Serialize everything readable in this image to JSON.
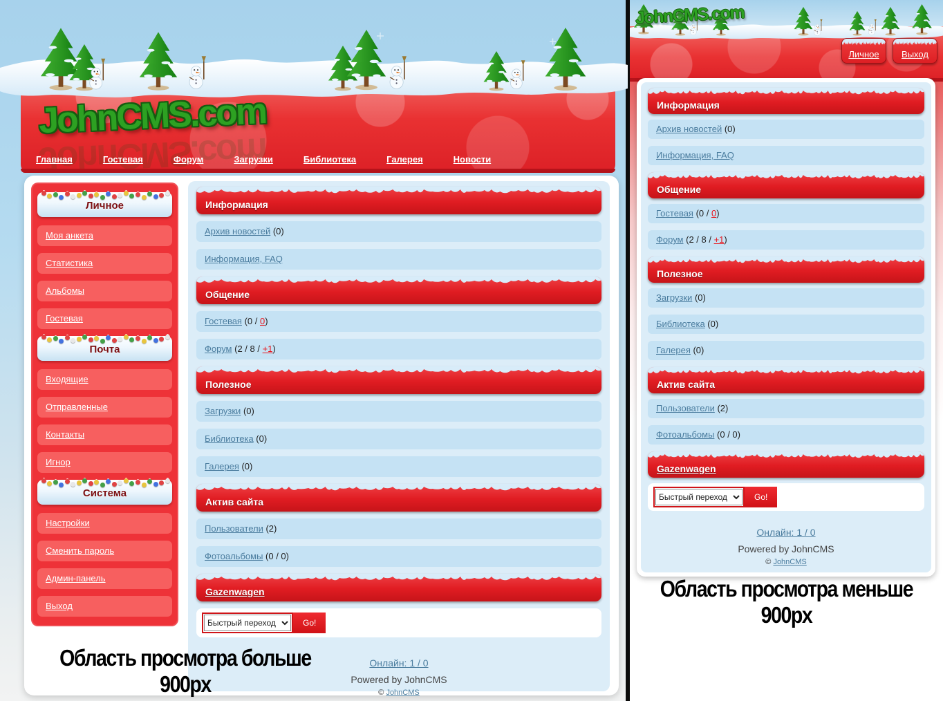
{
  "colors": {
    "brand_green": "#2da122",
    "accent_red": "#e01c22",
    "link_blue": "#4a7c9e",
    "hot_link_red": "#e8151b",
    "panel_blue": "#dcedf8",
    "item_blue": "#c5e2f4"
  },
  "icons": {
    "tree": "pine-tree-icon",
    "snowman": "snowman-icon",
    "garland": "garland-lights",
    "snow_cap": "snow-cap"
  },
  "desktop": {
    "logo": "JohnCMS.com",
    "nav": [
      "Главная",
      "Гостевая",
      "Форум",
      "Загрузки",
      "Библиотека",
      "Галерея",
      "Новости"
    ],
    "sidebar": {
      "sections": [
        {
          "title": "Личное",
          "items": [
            "Моя анкета",
            "Статистика",
            "Альбомы",
            "Гостевая"
          ]
        },
        {
          "title": "Почта",
          "items": [
            "Входящие",
            "Отправленные",
            "Контакты",
            "Игнор"
          ]
        },
        {
          "title": "Система",
          "items": [
            "Настройки",
            "Сменить пароль",
            "Админ-панель",
            "Выход"
          ]
        }
      ]
    },
    "caption": "Область просмотра больше 900px"
  },
  "mobile": {
    "logo": "JohnCMS.com",
    "buttons": [
      "Личное",
      "Выход"
    ],
    "caption": "Область просмотра меньше 900px"
  },
  "content": {
    "sections": [
      {
        "title": "Информация",
        "items": [
          {
            "link": "Архив новостей",
            "pre": " (0)"
          },
          {
            "link": "Информация, FAQ",
            "pre": ""
          }
        ]
      },
      {
        "title": "Общение",
        "items": [
          {
            "link": "Гостевая",
            "pre": " (0 / ",
            "hot": "0",
            "post": ")"
          },
          {
            "link": "Форум",
            "pre": " (2 / 8 / ",
            "hot": "+1",
            "post": ")"
          }
        ]
      },
      {
        "title": "Полезное",
        "items": [
          {
            "link": "Загрузки",
            "pre": " (0)"
          },
          {
            "link": "Библиотека",
            "pre": " (0)"
          },
          {
            "link": "Галерея",
            "pre": " (0)"
          }
        ]
      },
      {
        "title": "Актив сайта",
        "items": [
          {
            "link": "Пользователи",
            "pre": " (2)"
          },
          {
            "link": "Фотоальбомы",
            "pre": " (0 / 0)"
          }
        ]
      },
      {
        "title": "Gazenwagen",
        "title_is_link": true,
        "items": []
      }
    ]
  },
  "quickjump": {
    "select_label": "Быстрый переход",
    "go_label": "Go!"
  },
  "footer": {
    "online": "Онлайн: 1 / 0",
    "powered": "Powered by JohnCMS",
    "copyright_symbol": "©",
    "copyright_link": "JohnCMS"
  }
}
